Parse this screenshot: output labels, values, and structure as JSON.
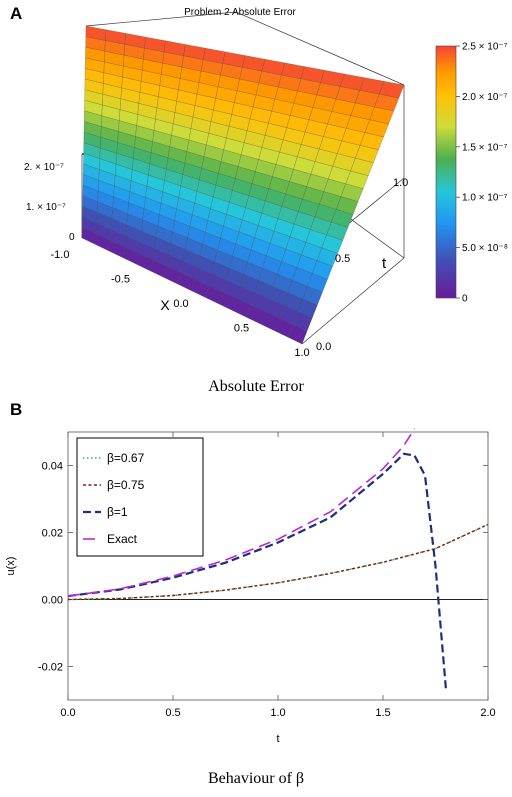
{
  "panel_a": {
    "letter": "A",
    "caption": "Absolute Error"
  },
  "panel_b": {
    "letter": "B",
    "caption": "Behaviour of β"
  },
  "chart_data": [
    {
      "type": "surface3d",
      "title": "Problem 2 Absolute Error",
      "xlabel": "X",
      "ylabel": "t",
      "x_ticks": [
        "-1.0",
        "-0.5",
        "0.0",
        "0.5",
        "1.0"
      ],
      "t_ticks": [
        "0.0",
        "0.5",
        "1.0"
      ],
      "z_ticks": [
        "0",
        "1. × 10⁻⁷",
        "2. × 10⁻⁷"
      ],
      "xlim": [
        -1,
        1
      ],
      "tlim": [
        0,
        1
      ],
      "zlim": [
        0,
        2.5e-07
      ],
      "description_values": {
        "z_at_t0": 0,
        "z_at_t1": 2.5e-07
      },
      "colorbar": {
        "ticks": [
          "0",
          "5.0 × 10⁻⁸",
          "1.0 × 10⁻⁷",
          "1.5 × 10⁻⁷",
          "2.0 × 10⁻⁷",
          "2.5 × 10⁻⁷"
        ],
        "values": [
          0,
          5e-08,
          1e-07,
          1.5e-07,
          2e-07,
          2.5e-07
        ],
        "colors": [
          "#6a1b9a",
          "#3f51b5",
          "#2196f3",
          "#26c6da",
          "#4caf50",
          "#cddc39",
          "#ffc107",
          "#ff9800",
          "#f44336"
        ]
      }
    },
    {
      "type": "line",
      "xlabel": "t",
      "ylabel": "u(x)",
      "xlim": [
        0,
        2
      ],
      "ylim": [
        -0.03,
        0.05
      ],
      "x_ticks": [
        "0.0",
        "0.5",
        "1.0",
        "1.5",
        "2.0"
      ],
      "y_ticks": [
        "-0.02",
        "0.00",
        "0.02",
        "0.04"
      ],
      "legend_position": "top-left",
      "series": [
        {
          "name": "β=0.67",
          "color": "#22c55e",
          "dash": "dot",
          "x": [
            0,
            0.25,
            0.5,
            0.75,
            1.0,
            1.25,
            1.5,
            1.75,
            2.0
          ],
          "y": [
            0.0,
            0.0003,
            0.0012,
            0.0028,
            0.005,
            0.0078,
            0.0111,
            0.0152,
            0.0224
          ]
        },
        {
          "name": "β=0.75",
          "color": "#8b1a1a",
          "dash": "smalldash",
          "x": [
            0,
            0.25,
            0.5,
            0.75,
            1.0,
            1.25,
            1.5,
            1.75,
            2.0
          ],
          "y": [
            0.0,
            0.0003,
            0.0012,
            0.0028,
            0.005,
            0.0078,
            0.0111,
            0.0152,
            0.0224
          ]
        },
        {
          "name": "β=1",
          "color": "#1e2f7a",
          "dash": "dash",
          "x": [
            0,
            0.25,
            0.5,
            0.75,
            1.0,
            1.25,
            1.5,
            1.6,
            1.65,
            1.7,
            1.75,
            1.8
          ],
          "y": [
            0.001,
            0.003,
            0.0065,
            0.011,
            0.017,
            0.0245,
            0.0375,
            0.0435,
            0.043,
            0.037,
            0.01,
            -0.027
          ]
        },
        {
          "name": "Exact",
          "color": "#c026d3",
          "dash": "longdash",
          "x": [
            0,
            0.25,
            0.5,
            0.75,
            1.0,
            1.25,
            1.5,
            1.6,
            1.65
          ],
          "y": [
            0.001,
            0.0032,
            0.007,
            0.0118,
            0.018,
            0.0262,
            0.039,
            0.046,
            0.051
          ]
        }
      ]
    }
  ]
}
